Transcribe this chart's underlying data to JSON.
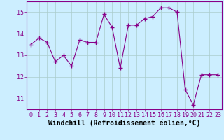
{
  "x": [
    0,
    1,
    2,
    3,
    4,
    5,
    6,
    7,
    8,
    9,
    10,
    11,
    12,
    13,
    14,
    15,
    16,
    17,
    18,
    19,
    20,
    21,
    22,
    23
  ],
  "y": [
    13.5,
    13.8,
    13.6,
    12.7,
    13.0,
    12.5,
    13.7,
    13.6,
    13.6,
    14.9,
    14.3,
    12.4,
    14.4,
    14.4,
    14.7,
    14.8,
    15.2,
    15.2,
    15.0,
    11.4,
    10.7,
    12.1,
    12.1,
    12.1
  ],
  "xlabel": "Windchill (Refroidissement éolien,°C)",
  "ylim": [
    10.5,
    15.5
  ],
  "yticks": [
    11,
    12,
    13,
    14,
    15
  ],
  "xlim": [
    -0.5,
    23.5
  ],
  "line_color": "#880088",
  "marker": "+",
  "bg_color": "#cceeff",
  "grid_color": "#aacccc",
  "tick_label_fontsize": 6.0,
  "xlabel_fontsize": 7.0
}
